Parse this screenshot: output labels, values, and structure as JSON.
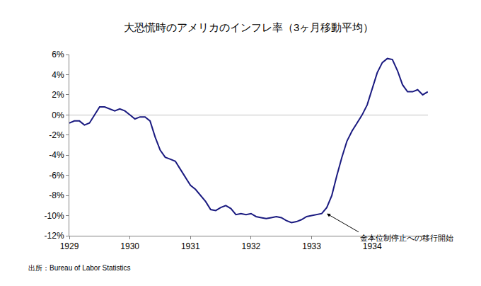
{
  "chart_data": {
    "type": "line",
    "title": "大恐慌時のアメリカのインフレ率（3ヶ月移動平均）",
    "source": "出所：Bureau of Labor Statistics",
    "x": [
      1929.0,
      1929.083,
      1929.167,
      1929.25,
      1929.333,
      1929.417,
      1929.5,
      1929.583,
      1929.667,
      1929.75,
      1929.833,
      1929.917,
      1930.0,
      1930.083,
      1930.167,
      1930.25,
      1930.333,
      1930.417,
      1930.5,
      1930.583,
      1930.667,
      1930.75,
      1930.833,
      1930.917,
      1931.0,
      1931.083,
      1931.167,
      1931.25,
      1931.333,
      1931.417,
      1931.5,
      1931.583,
      1931.667,
      1931.75,
      1931.833,
      1931.917,
      1932.0,
      1932.083,
      1932.167,
      1932.25,
      1932.333,
      1932.417,
      1932.5,
      1932.583,
      1932.667,
      1932.75,
      1932.833,
      1932.917,
      1933.0,
      1933.083,
      1933.167,
      1933.25,
      1933.333,
      1933.417,
      1933.5,
      1933.583,
      1933.667,
      1933.75,
      1933.833,
      1933.917,
      1934.0,
      1934.083,
      1934.167,
      1934.25,
      1934.333,
      1934.417,
      1934.5,
      1934.583,
      1934.667,
      1934.75,
      1934.833,
      1934.917
    ],
    "values": [
      -0.8,
      -0.6,
      -0.6,
      -1.0,
      -0.8,
      0.0,
      0.8,
      0.8,
      0.6,
      0.4,
      0.6,
      0.4,
      0.0,
      -0.4,
      -0.2,
      -0.2,
      -0.6,
      -2.2,
      -3.5,
      -4.2,
      -4.4,
      -4.6,
      -5.4,
      -6.2,
      -7.0,
      -7.4,
      -8.0,
      -8.6,
      -9.4,
      -9.5,
      -9.2,
      -9.0,
      -9.3,
      -9.9,
      -9.8,
      -9.9,
      -9.8,
      -10.1,
      -10.2,
      -10.3,
      -10.2,
      -10.1,
      -10.2,
      -10.5,
      -10.7,
      -10.6,
      -10.4,
      -10.1,
      -10.0,
      -9.9,
      -9.8,
      -9.2,
      -8.0,
      -6.0,
      -4.2,
      -2.6,
      -1.6,
      -0.8,
      0.0,
      1.0,
      2.6,
      4.2,
      5.2,
      5.6,
      5.5,
      4.4,
      3.0,
      2.3,
      2.3,
      2.5,
      2.0,
      2.3
    ],
    "color": "#1a1a80",
    "xlim": [
      1929,
      1934.92
    ],
    "xticks": [
      1929,
      1930,
      1931,
      1932,
      1933,
      1934
    ],
    "ylim": [
      -12,
      6
    ],
    "yticks": [
      {
        "value": -12,
        "label": "-12%"
      },
      {
        "value": -10,
        "label": "-10%"
      },
      {
        "value": -8,
        "label": "-8%"
      },
      {
        "value": -6,
        "label": "-6%"
      },
      {
        "value": -4,
        "label": "-4%"
      },
      {
        "value": -2,
        "label": "-2%"
      },
      {
        "value": 0,
        "label": "0%"
      },
      {
        "value": 2,
        "label": "2%"
      },
      {
        "value": 4,
        "label": "4%"
      },
      {
        "value": 6,
        "label": "6%"
      }
    ],
    "grid": false,
    "annotations": [
      {
        "text": "金本位制停止への移行開始",
        "x": 1933.25,
        "y": -9.8
      }
    ]
  }
}
